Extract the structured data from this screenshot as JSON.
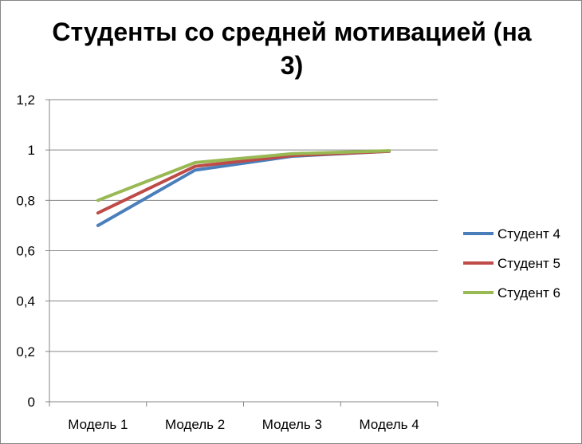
{
  "chart_data": {
    "type": "line",
    "title_lines": [
      "Студенты со средней мотивацией (на",
      "3)"
    ],
    "categories": [
      "Модель 1",
      "Модель 2",
      "Модель 3",
      "Модель 4"
    ],
    "y_ticks": [
      "0",
      "0,2",
      "0,4",
      "0,6",
      "0,8",
      "1",
      "1,2"
    ],
    "ylim": [
      0,
      1.2
    ],
    "y_step": 0.2,
    "grid": true,
    "legend_position": "right",
    "series": [
      {
        "name": "Студент 4",
        "color": "#4a7ebb",
        "values": [
          0.7,
          0.92,
          0.975,
          0.995
        ]
      },
      {
        "name": "Студент 5",
        "color": "#be4b48",
        "values": [
          0.75,
          0.935,
          0.978,
          0.995
        ]
      },
      {
        "name": "Студент 6",
        "color": "#98b954",
        "values": [
          0.8,
          0.95,
          0.985,
          0.997
        ]
      }
    ]
  }
}
